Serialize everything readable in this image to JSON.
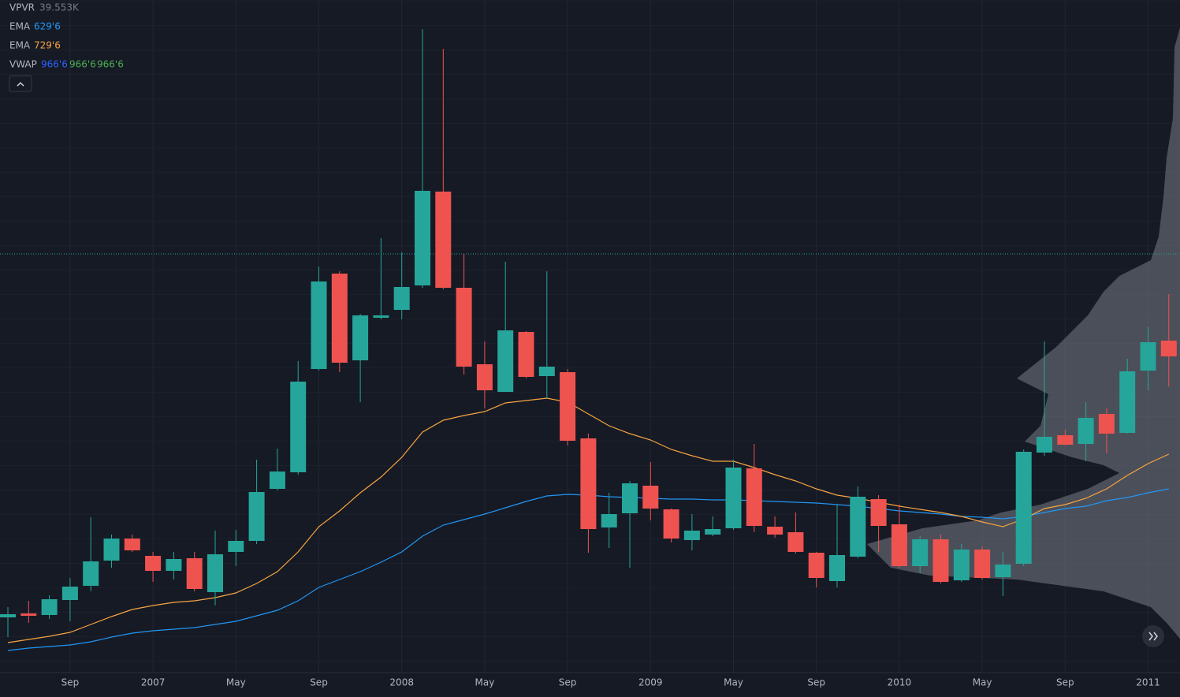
{
  "chart_data": {
    "type": "candlestick",
    "legend": [
      {
        "name": "VPVR",
        "values": [
          "39.553K"
        ]
      },
      {
        "name": "EMA",
        "values": [
          "629'6"
        ]
      },
      {
        "name": "EMA",
        "values": [
          "729'6"
        ]
      },
      {
        "name": "VWAP",
        "values": [
          "966'6",
          "966'6",
          "966'6"
        ]
      }
    ],
    "categories": [
      null,
      null,
      null,
      "Sep",
      null,
      null,
      null,
      "2007",
      null,
      null,
      null,
      "May",
      null,
      null,
      null,
      "Sep",
      null,
      null,
      null,
      "2008",
      null,
      null,
      null,
      "May",
      null,
      null,
      null,
      "Sep",
      null,
      null,
      null,
      "2009",
      null,
      null,
      null,
      "May",
      null,
      null,
      null,
      "Sep",
      null,
      null,
      null,
      "2010",
      null,
      null,
      null,
      "May",
      null,
      null,
      null,
      "Sep",
      null,
      null,
      null,
      "2011",
      null
    ],
    "open": [
      101,
      106,
      104,
      123,
      141,
      173,
      201,
      179,
      160,
      176,
      133,
      184,
      198,
      264,
      285,
      416,
      537,
      427,
      481,
      491,
      522,
      641,
      519,
      422,
      387,
      463,
      407,
      412,
      328,
      215,
      233,
      268,
      238,
      199,
      206,
      214,
      290,
      216,
      209,
      183,
      147,
      178,
      251,
      219,
      166,
      200,
      148,
      187,
      152,
      169,
      310,
      332,
      321,
      359,
      335,
      414,
      452
    ],
    "high": [
      114,
      122,
      129,
      151,
      228,
      206,
      206,
      184,
      184,
      184,
      211,
      212,
      301,
      315,
      426,
      546,
      540,
      486,
      582,
      564,
      847,
      822,
      562,
      451,
      552,
      464,
      540,
      416,
      334,
      259,
      274,
      298,
      239,
      232,
      229,
      301,
      321,
      229,
      234,
      184,
      244,
      267,
      256,
      244,
      204,
      206,
      194,
      191,
      184,
      314,
      451,
      339,
      374,
      366,
      429,
      469,
      511
    ],
    "low": [
      76,
      94,
      99,
      96,
      134,
      164,
      184,
      146,
      149,
      134,
      116,
      166,
      194,
      262,
      282,
      414,
      412,
      374,
      479,
      479,
      519,
      517,
      409,
      366,
      387,
      404,
      379,
      319,
      183,
      189,
      164,
      224,
      196,
      186,
      204,
      212,
      209,
      202,
      182,
      139,
      139,
      176,
      184,
      164,
      157,
      144,
      146,
      149,
      128,
      166,
      306,
      319,
      299,
      309,
      334,
      389,
      394
    ],
    "close": [
      105,
      103,
      124,
      140,
      172,
      201,
      186,
      160,
      175,
      137,
      181,
      198,
      260,
      286,
      400,
      527,
      424,
      484,
      484,
      520,
      642,
      519,
      419,
      389,
      465,
      406,
      419,
      325,
      213,
      232,
      271,
      239,
      201,
      211,
      213,
      291,
      217,
      206,
      184,
      151,
      180,
      254,
      217,
      166,
      200,
      146,
      187,
      151,
      168,
      311,
      330,
      320,
      354,
      334,
      413,
      450,
      432
    ],
    "up_color": "#26a69a",
    "down_color": "#ef5350",
    "series": [
      {
        "name": "EMA",
        "color": "#2196f3",
        "values": [
          59,
          62,
          64,
          66,
          70,
          76,
          81,
          84,
          86,
          88,
          92,
          96,
          103,
          110,
          122,
          139,
          149,
          159,
          171,
          184,
          204,
          218,
          225,
          232,
          240,
          248,
          255,
          257,
          256,
          254,
          253,
          252,
          251,
          251,
          250,
          250,
          249,
          248,
          247,
          246,
          244,
          242,
          239,
          236,
          234,
          232,
          229,
          228,
          226,
          229,
          234,
          239,
          242,
          249,
          253,
          259,
          264
        ]
      },
      {
        "name": "EMA",
        "color": "#f7a440",
        "values": [
          69,
          73,
          77,
          82,
          92,
          102,
          111,
          116,
          120,
          122,
          126,
          132,
          144,
          159,
          184,
          216,
          236,
          259,
          279,
          304,
          336,
          351,
          357,
          362,
          373,
          376,
          379,
          374,
          359,
          344,
          334,
          326,
          314,
          306,
          299,
          299,
          291,
          282,
          274,
          264,
          256,
          252,
          247,
          242,
          238,
          234,
          229,
          222,
          216,
          226,
          239,
          244,
          252,
          264,
          281,
          296,
          308
        ]
      }
    ],
    "price_line": 562,
    "ylim": [
      31,
      884
    ],
    "grid": true
  }
}
